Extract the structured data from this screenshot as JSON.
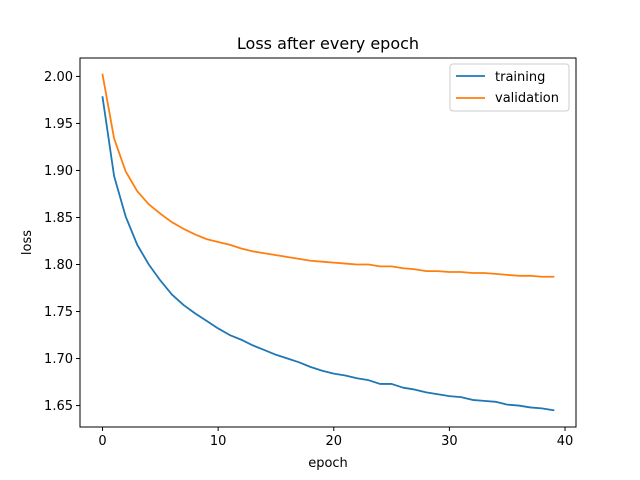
{
  "chart_data": {
    "type": "line",
    "title": "Loss after every epoch",
    "xlabel": "epoch",
    "ylabel": "loss",
    "xlim": [
      -1.95,
      40.95
    ],
    "ylim": [
      1.6272,
      2.0196
    ],
    "x_ticks": [
      0,
      10,
      20,
      30,
      40
    ],
    "y_ticks": [
      1.65,
      1.7,
      1.75,
      1.8,
      1.85,
      1.9,
      1.95,
      2.0
    ],
    "grid": false,
    "legend_position": "top-right",
    "x": [
      0,
      1,
      2,
      3,
      4,
      5,
      6,
      7,
      8,
      9,
      10,
      11,
      12,
      13,
      14,
      15,
      16,
      17,
      18,
      19,
      20,
      21,
      22,
      23,
      24,
      25,
      26,
      27,
      28,
      29,
      30,
      31,
      32,
      33,
      34,
      35,
      36,
      37,
      38,
      39
    ],
    "series": [
      {
        "name": "training",
        "color": "#1f77b4",
        "values": [
          1.978,
          1.894,
          1.851,
          1.821,
          1.8,
          1.783,
          1.768,
          1.757,
          1.748,
          1.74,
          1.732,
          1.725,
          1.72,
          1.714,
          1.709,
          1.704,
          1.7,
          1.696,
          1.691,
          1.687,
          1.684,
          1.682,
          1.679,
          1.677,
          1.673,
          1.673,
          1.669,
          1.667,
          1.664,
          1.662,
          1.66,
          1.659,
          1.656,
          1.655,
          1.654,
          1.651,
          1.65,
          1.648,
          1.647,
          1.645
        ]
      },
      {
        "name": "validation",
        "color": "#ff7f0e",
        "values": [
          2.002,
          1.934,
          1.899,
          1.878,
          1.864,
          1.854,
          1.845,
          1.838,
          1.832,
          1.827,
          1.824,
          1.821,
          1.817,
          1.814,
          1.812,
          1.81,
          1.808,
          1.806,
          1.804,
          1.803,
          1.802,
          1.801,
          1.8,
          1.8,
          1.798,
          1.798,
          1.796,
          1.795,
          1.793,
          1.793,
          1.792,
          1.792,
          1.791,
          1.791,
          1.79,
          1.789,
          1.788,
          1.788,
          1.787,
          1.787
        ]
      }
    ]
  }
}
